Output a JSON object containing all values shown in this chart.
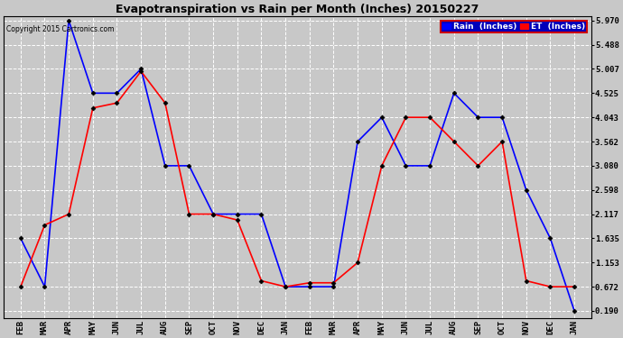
{
  "title": "Evapotranspiration vs Rain per Month (Inches) 20150227",
  "copyright": "Copyright 2015 Cartronics.com",
  "x_labels": [
    "FEB",
    "MAR",
    "APR",
    "MAY",
    "JUN",
    "JUL",
    "AUG",
    "SEP",
    "OCT",
    "NOV",
    "DEC",
    "JAN",
    "FEB",
    "MAR",
    "APR",
    "MAY",
    "JUN",
    "JUL",
    "AUG",
    "SEP",
    "OCT",
    "NOV",
    "DEC",
    "JAN"
  ],
  "rain_values": [
    1.635,
    0.672,
    5.97,
    4.525,
    4.525,
    5.007,
    3.08,
    3.08,
    2.117,
    2.117,
    2.117,
    0.672,
    0.672,
    0.672,
    3.562,
    4.043,
    3.08,
    3.08,
    4.525,
    4.043,
    4.043,
    2.598,
    1.635,
    0.19
  ],
  "et_values": [
    0.672,
    1.9,
    2.117,
    4.23,
    4.33,
    4.96,
    4.33,
    2.117,
    2.117,
    2.0,
    0.79,
    0.672,
    0.75,
    0.75,
    1.153,
    3.08,
    4.043,
    4.043,
    3.562,
    3.08,
    3.562,
    0.79,
    0.672,
    0.672
  ],
  "y_ticks": [
    0.19,
    0.672,
    1.153,
    1.635,
    2.117,
    2.598,
    3.08,
    3.562,
    4.043,
    4.525,
    5.007,
    5.488,
    5.97
  ],
  "y_min": 0.19,
  "y_max": 5.97,
  "rain_color": "#0000ff",
  "et_color": "#ff0000",
  "background_color": "#c8c8c8",
  "legend_rain_label": "Rain  (Inches)",
  "legend_et_label": "ET  (Inches)"
}
